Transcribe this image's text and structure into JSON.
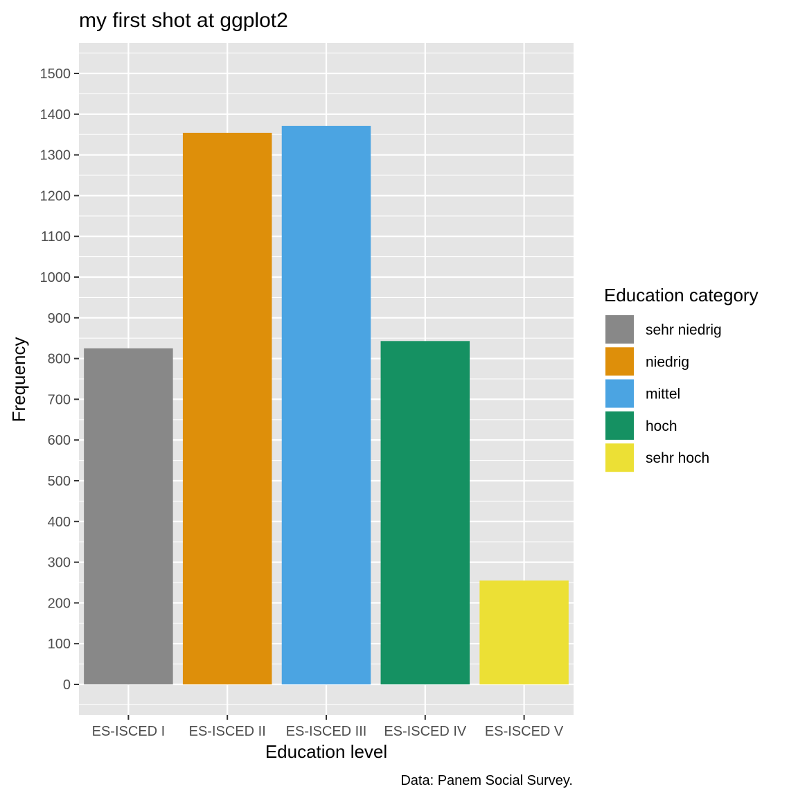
{
  "chart_data": {
    "type": "bar",
    "title": "my first shot at ggplot2",
    "xlabel": "Education level",
    "ylabel": "Frequency",
    "caption": "Data: Panem Social Survey.",
    "categories": [
      "ES-ISCED I",
      "ES-ISCED II",
      "ES-ISCED III",
      "ES-ISCED IV",
      "ES-ISCED V"
    ],
    "values": [
      825,
      1354,
      1371,
      843,
      255
    ],
    "colors": [
      "#888888",
      "#DE8F0A",
      "#4BA4E2",
      "#159162",
      "#ECE035"
    ],
    "ylim": [
      -75,
      1575
    ],
    "yticks": [
      0,
      100,
      200,
      300,
      400,
      500,
      600,
      700,
      800,
      900,
      1000,
      1100,
      1200,
      1300,
      1400,
      1500
    ],
    "grid": true,
    "panel_background": "#E5E5E5",
    "legend": {
      "title": "Education category",
      "position": "right",
      "items": [
        {
          "label": "sehr niedrig",
          "color": "#888888"
        },
        {
          "label": "niedrig",
          "color": "#DE8F0A"
        },
        {
          "label": "mittel",
          "color": "#4BA4E2"
        },
        {
          "label": "hoch",
          "color": "#159162"
        },
        {
          "label": "sehr hoch",
          "color": "#ECE035"
        }
      ]
    }
  }
}
